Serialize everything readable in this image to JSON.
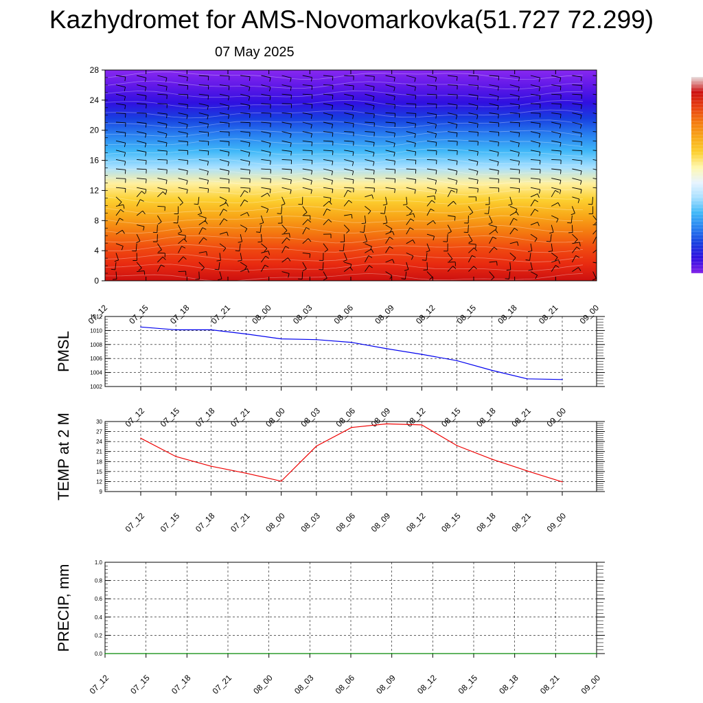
{
  "header": {
    "title": "Kazhydromet for AMS-Novomarkovka(51.727 72.299)",
    "date": "07 May 2025"
  },
  "time_labels": [
    "07_12",
    "07_15",
    "07_18",
    "07_21",
    "08_00",
    "08_03",
    "08_06",
    "08_09",
    "08_12",
    "08_15",
    "08_18",
    "08_21",
    "09_00"
  ],
  "chart_data": [
    {
      "type": "heatmap",
      "xlabel": "",
      "ylabel": "",
      "x": [
        "07_12",
        "07_15",
        "07_18",
        "07_21",
        "08_00",
        "08_03",
        "08_06",
        "08_09",
        "08_12",
        "08_15",
        "08_18",
        "08_21",
        "09_00"
      ],
      "yticks": [
        0,
        4,
        8,
        12,
        16,
        20,
        24,
        28
      ],
      "ylim": [
        0,
        28
      ],
      "colormap": [
        "#cc1010",
        "#e82a10",
        "#f04a10",
        "#f47a10",
        "#f8a818",
        "#fcd030",
        "#fff0a0",
        "#a8e0ff",
        "#40b8f8",
        "#2880f0",
        "#1840e0",
        "#3010e0",
        "#6018e8",
        "#8828f0"
      ],
      "overlays": [
        "white contour lines",
        "black wind barbs"
      ],
      "colorbar": "right, no labels"
    },
    {
      "type": "line",
      "ylabel": "PMSL",
      "x": [
        "07_12",
        "07_15",
        "07_18",
        "07_21",
        "08_00",
        "08_03",
        "08_06",
        "08_09",
        "08_12",
        "08_15",
        "08_18",
        "08_21",
        "09_00"
      ],
      "values": [
        1010.5,
        1010.1,
        1010.1,
        1009.5,
        1008.8,
        1008.7,
        1008.3,
        1007.4,
        1006.6,
        1005.7,
        1004.3,
        1003.1,
        1003.0
      ],
      "ylim": [
        1002,
        1012
      ],
      "yticks": [
        1002,
        1004,
        1006,
        1008,
        1010,
        1012
      ],
      "color": "#0000ee",
      "grid": true
    },
    {
      "type": "line",
      "ylabel": "TEMP at 2 M",
      "x": [
        "07_12",
        "07_15",
        "07_18",
        "07_21",
        "08_00",
        "08_03",
        "08_06",
        "08_09",
        "08_12",
        "08_15",
        "08_18",
        "08_21",
        "09_00"
      ],
      "values": [
        25,
        19.5,
        16.6,
        14.5,
        12.1,
        22.6,
        28.2,
        29.3,
        29.0,
        22.8,
        18.7,
        15.2,
        11.9
      ],
      "ylim": [
        9,
        30
      ],
      "yticks": [
        9,
        12,
        15,
        18,
        21,
        24,
        27,
        30
      ],
      "color": "#ee0000",
      "grid": true
    },
    {
      "type": "line",
      "ylabel": "PRECIP, mm",
      "x": [
        "07_12",
        "07_15",
        "07_18",
        "07_21",
        "08_00",
        "08_03",
        "08_06",
        "08_09",
        "08_12",
        "08_15",
        "08_18",
        "08_21",
        "09_00"
      ],
      "values": [
        0,
        0,
        0,
        0,
        0,
        0,
        0,
        0,
        0,
        0,
        0,
        0,
        0
      ],
      "ylim": [
        0,
        1.0
      ],
      "yticks": [
        "0.0",
        "0.2",
        "0.4",
        "0.6",
        "0.8",
        "1.0"
      ],
      "color": "#008800",
      "grid": true
    }
  ]
}
